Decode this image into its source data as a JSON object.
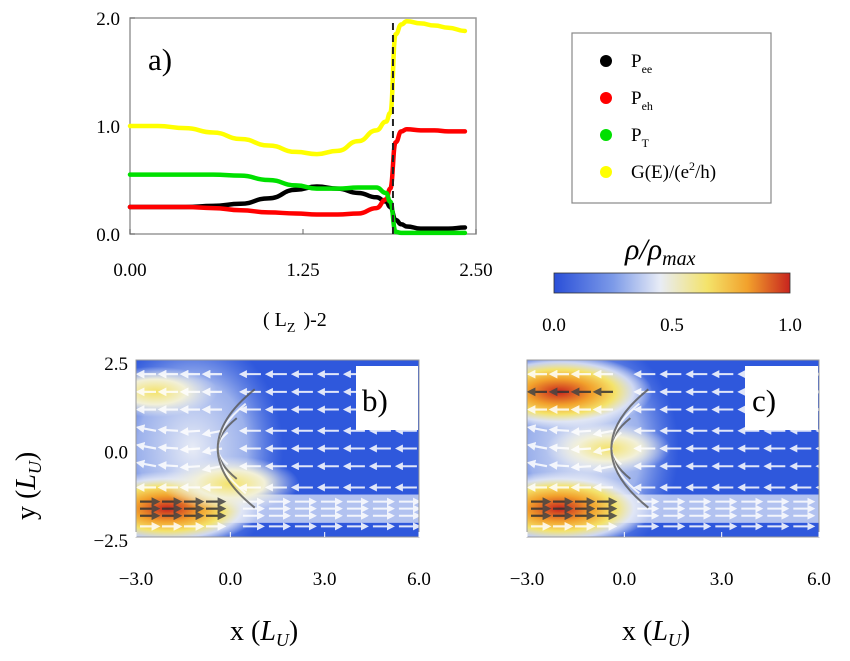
{
  "chart_data": [
    {
      "id": "a",
      "type": "line",
      "panel_label": "a)",
      "xlabel": "( L",
      "xlabel_sub": "Z",
      "xlabel_sup": ")-2",
      "xlim": [
        0,
        2.5
      ],
      "ylim": [
        0,
        2.0
      ],
      "xticks": [
        "0.00",
        "1.25",
        "2.50"
      ],
      "xtick_values": [
        0,
        1.25,
        2.5
      ],
      "yticks": [
        "0.0",
        "1.0",
        "2.0"
      ],
      "ytick_values": [
        0,
        1,
        2
      ],
      "vline_x": 1.9,
      "x": [
        0,
        0.2,
        0.4,
        0.6,
        0.8,
        1.0,
        1.2,
        1.35,
        1.5,
        1.65,
        1.78,
        1.85,
        1.88,
        1.92,
        1.96,
        2.0,
        2.1,
        2.2,
        2.3,
        2.42
      ],
      "series": [
        {
          "name": "P",
          "sub": "ee",
          "color": "#000000",
          "values": [
            0.25,
            0.25,
            0.25,
            0.26,
            0.28,
            0.33,
            0.41,
            0.44,
            0.42,
            0.38,
            0.34,
            0.3,
            0.25,
            0.13,
            0.09,
            0.07,
            0.05,
            0.05,
            0.05,
            0.06
          ]
        },
        {
          "name": "P",
          "sub": "eh",
          "color": "#ff0000",
          "values": [
            0.25,
            0.25,
            0.25,
            0.24,
            0.22,
            0.2,
            0.19,
            0.18,
            0.18,
            0.19,
            0.24,
            0.32,
            0.42,
            0.85,
            0.95,
            0.97,
            0.96,
            0.96,
            0.95,
            0.95
          ]
        },
        {
          "name": "P",
          "sub": "T",
          "color": "#00e000",
          "values": [
            0.55,
            0.55,
            0.55,
            0.55,
            0.54,
            0.5,
            0.45,
            0.42,
            0.42,
            0.43,
            0.43,
            0.38,
            0.3,
            0.02,
            0.01,
            0.01,
            0.01,
            0.01,
            0.01,
            0.01
          ]
        },
        {
          "name": "G(E)/(e",
          "sup": "2",
          "tail": "/h)",
          "color": "#ffff00",
          "values": [
            1.0,
            1.0,
            0.98,
            0.94,
            0.88,
            0.82,
            0.76,
            0.74,
            0.77,
            0.86,
            0.96,
            1.04,
            1.12,
            1.85,
            1.94,
            1.97,
            1.95,
            1.93,
            1.91,
            1.88
          ]
        }
      ]
    },
    {
      "id": "b",
      "type": "heatmap",
      "panel_label": "b)",
      "xlabel": "x (",
      "xlabel_var": "L",
      "xlabel_sub": "U",
      "xlabel_tail": ")",
      "ylabel": "y (",
      "ylabel_var": "L",
      "ylabel_sub": "U",
      "ylabel_tail": ")",
      "xlim": [
        -3.0,
        6.0
      ],
      "ylim": [
        -2.5,
        2.5
      ],
      "xticks": [
        "−3.0",
        "0.0",
        "3.0",
        "6.0"
      ],
      "xtick_values": [
        -3,
        0,
        3,
        6
      ],
      "yticks": [
        "2.5",
        "0.0",
        "−2.5"
      ],
      "ytick_values": [
        2.5,
        0,
        -2.5
      ],
      "hotspots": [
        {
          "x": -2.0,
          "y": -1.7,
          "level": 0.95
        },
        {
          "x": -2.4,
          "y": 1.6,
          "level": 0.45
        },
        {
          "x": 0.0,
          "y": -1.0,
          "level": 0.55
        }
      ]
    },
    {
      "id": "c",
      "type": "heatmap",
      "panel_label": "c)",
      "xlabel": "x (",
      "xlabel_var": "L",
      "xlabel_sub": "U",
      "xlabel_tail": ")",
      "xlim": [
        -3.0,
        6.0
      ],
      "ylim": [
        -2.5,
        2.5
      ],
      "xticks": [
        "−3.0",
        "0.0",
        "3.0",
        "6.0"
      ],
      "xtick_values": [
        -3,
        0,
        3,
        6
      ],
      "hotspots": [
        {
          "x": -2.0,
          "y": 1.6,
          "level": 0.95
        },
        {
          "x": -2.0,
          "y": -1.7,
          "level": 0.95
        },
        {
          "x": -0.5,
          "y": 0.0,
          "level": 0.45
        }
      ]
    }
  ],
  "colorbar": {
    "label": "ρ/ρ",
    "label_sub": "max",
    "ticks": [
      "0.0",
      "0.5",
      "1.0"
    ],
    "tick_values": [
      0,
      0.5,
      1.0
    ],
    "colors": [
      "#2a4fd8",
      "#7c9ae8",
      "#e8ecf6",
      "#f4e36a",
      "#f2a12c",
      "#c8241e"
    ]
  }
}
